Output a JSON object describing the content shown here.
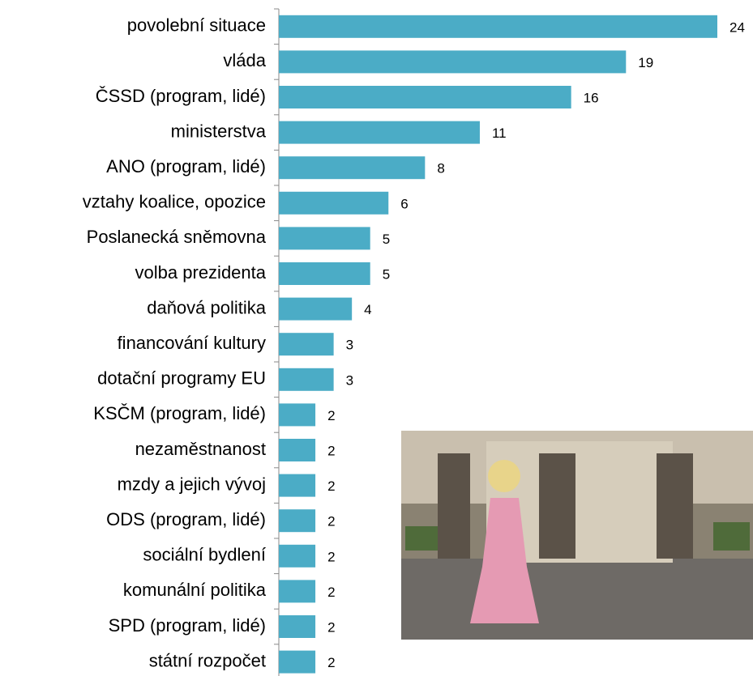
{
  "chart_data": {
    "type": "bar",
    "orientation": "horizontal",
    "categories": [
      "povolební situace",
      "vláda",
      "ČSSD (program, lidé)",
      "ministerstva",
      "ANO (program, lidé)",
      "vztahy koalice, opozice",
      "Poslanecká sněmovna",
      "volba prezidenta",
      "daňová politika",
      "financování kultury",
      "dotační programy EU",
      "KSČM (program, lidé)",
      "nezaměstnanost",
      "mzdy a jejich vývoj",
      "ODS (program, lidé)",
      "sociální bydlení",
      "komunální politika",
      "SPD (program, lidé)",
      "státní rozpočet"
    ],
    "values": [
      24,
      19,
      16,
      11,
      8,
      6,
      5,
      5,
      4,
      3,
      3,
      2,
      2,
      2,
      2,
      2,
      2,
      2,
      2
    ],
    "color": "#4bacc6"
  }
}
